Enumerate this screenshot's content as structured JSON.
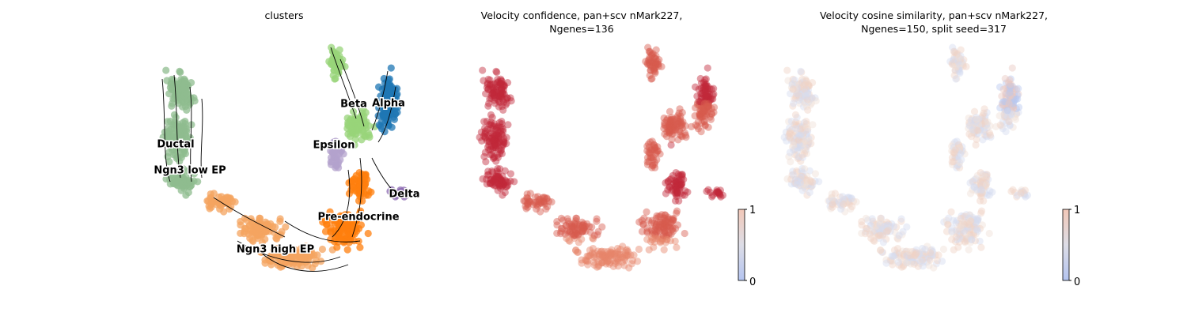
{
  "panels": [
    {
      "title": "clusters"
    },
    {
      "title": "Velocity confidence, pan+scv nMark227,\n Ngenes=136"
    },
    {
      "title": "Velocity cosine similarity, pan+scv nMark227,\n Ngenes=150, split seed=317"
    }
  ],
  "chart_data": [
    {
      "type": "scatter",
      "title": "clusters",
      "embedding": "UMAP with velocity streamlines",
      "clusters": [
        {
          "name": "Ductal",
          "color": "#8fbc8f"
        },
        {
          "name": "Ngn3 low EP",
          "color": "#8fbc8f"
        },
        {
          "name": "Ngn3 high EP",
          "color": "#f4a460"
        },
        {
          "name": "Pre-endocrine",
          "color": "#ff7f0e"
        },
        {
          "name": "Beta",
          "color": "#98d47a"
        },
        {
          "name": "Alpha",
          "color": "#1f77b4"
        },
        {
          "name": "Delta",
          "color": "#8c6bb1"
        },
        {
          "name": "Epsilon",
          "color": "#b3a2cc"
        }
      ],
      "axes": "off",
      "legend": "on data"
    },
    {
      "type": "scatter",
      "title": "Velocity confidence, pan+scv nMark227,\n Ngenes=136",
      "colormap": "coolwarm",
      "colorbar": {
        "ticks": [
          "0",
          "1"
        ],
        "range": [
          0,
          1
        ]
      },
      "axes": "off"
    },
    {
      "type": "scatter",
      "title": "Velocity cosine similarity, pan+scv nMark227,\n Ngenes=150, split seed=317",
      "colormap": "coolwarm",
      "colorbar": {
        "ticks": [
          "0",
          "1"
        ],
        "range": [
          0,
          1
        ]
      },
      "axes": "off"
    }
  ]
}
